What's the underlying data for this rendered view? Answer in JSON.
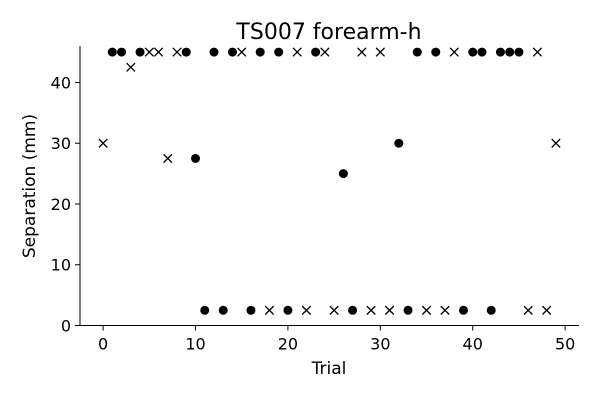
{
  "chart_data": {
    "type": "scatter",
    "title": "TS007 forearm-h",
    "xlabel": "Trial",
    "ylabel": "Separation (mm)",
    "xlim": [
      -2.5,
      51.5
    ],
    "ylim": [
      0,
      46
    ],
    "xticks": [
      0,
      10,
      20,
      30,
      40,
      50
    ],
    "yticks": [
      0,
      10,
      20,
      30,
      40
    ],
    "grid": false,
    "legend": "none",
    "series": [
      {
        "marker": "filled-circle",
        "color": "#000000",
        "points": [
          [
            1,
            45
          ],
          [
            2,
            45
          ],
          [
            4,
            45
          ],
          [
            9,
            45
          ],
          [
            10,
            27.5
          ],
          [
            11,
            2.5
          ],
          [
            12,
            45
          ],
          [
            13,
            2.5
          ],
          [
            14,
            45
          ],
          [
            16,
            2.5
          ],
          [
            17,
            45
          ],
          [
            19,
            45
          ],
          [
            20,
            2.5
          ],
          [
            23,
            45
          ],
          [
            26,
            25
          ],
          [
            27,
            2.5
          ],
          [
            32,
            30
          ],
          [
            33,
            2.5
          ],
          [
            34,
            45
          ],
          [
            36,
            45
          ],
          [
            39,
            2.5
          ],
          [
            40,
            45
          ],
          [
            41,
            45
          ],
          [
            42,
            2.5
          ],
          [
            43,
            45
          ],
          [
            44,
            45
          ],
          [
            45,
            45
          ]
        ]
      },
      {
        "marker": "x",
        "color": "#000000",
        "points": [
          [
            0,
            30
          ],
          [
            3,
            42.5
          ],
          [
            5,
            45
          ],
          [
            6,
            45
          ],
          [
            7,
            27.5
          ],
          [
            8,
            45
          ],
          [
            15,
            45
          ],
          [
            18,
            2.5
          ],
          [
            21,
            45
          ],
          [
            22,
            2.5
          ],
          [
            24,
            45
          ],
          [
            25,
            2.5
          ],
          [
            28,
            45
          ],
          [
            29,
            2.5
          ],
          [
            30,
            45
          ],
          [
            31,
            2.5
          ],
          [
            35,
            2.5
          ],
          [
            37,
            2.5
          ],
          [
            38,
            45
          ],
          [
            46,
            2.5
          ],
          [
            47,
            45
          ],
          [
            48,
            2.5
          ],
          [
            49,
            30
          ]
        ]
      }
    ]
  }
}
